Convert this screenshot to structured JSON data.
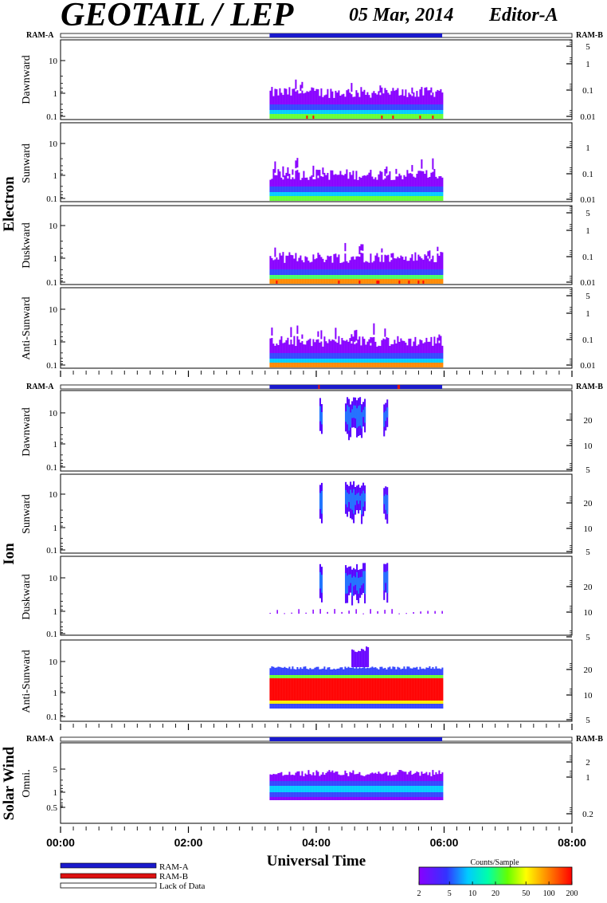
{
  "header": {
    "title": "GEOTAIL / LEP",
    "date": "05 Mar, 2014",
    "editor": "Editor-A"
  },
  "ram_labels": {
    "a": "RAM-A",
    "b": "RAM-B"
  },
  "groups": [
    {
      "label": "Electron",
      "panels": [
        "Dawnward",
        "Sunward",
        "Duskward",
        "Anti-Sunward"
      ]
    },
    {
      "label": "Ion",
      "panels": [
        "Dawnward",
        "Sunward",
        "Duskward",
        "Anti-Sunward"
      ]
    },
    {
      "label": "Solar Wind",
      "panels": [
        "Omni."
      ]
    }
  ],
  "chart_data": {
    "type": "heatmap",
    "xlabel": "Universal Time",
    "x_ticks": [
      "00:00",
      "02:00",
      "04:00",
      "06:00",
      "08:00"
    ],
    "x_range_hours": [
      0,
      8
    ],
    "data_coverage_hours": [
      3.27,
      5.97
    ],
    "panels": [
      {
        "group": "Electron",
        "name": "Dawnward",
        "left_ticks": [
          "10",
          "1",
          "0.1"
        ],
        "right_ticks": [
          "5",
          "1",
          "0.1",
          "0.01"
        ]
      },
      {
        "group": "Electron",
        "name": "Sunward",
        "left_ticks": [
          "10",
          "1",
          "0.1"
        ],
        "right_ticks": [
          "1",
          "0.1",
          "0.01"
        ]
      },
      {
        "group": "Electron",
        "name": "Duskward",
        "left_ticks": [
          "10",
          "1",
          "0.1"
        ],
        "right_ticks": [
          "5",
          "1",
          "0.1",
          "0.01"
        ]
      },
      {
        "group": "Electron",
        "name": "Anti-Sunward",
        "left_ticks": [
          "10",
          "1",
          "0.1"
        ],
        "right_ticks": [
          "5",
          "1",
          "0.1",
          "0.01"
        ]
      },
      {
        "group": "Ion",
        "name": "Dawnward",
        "left_ticks": [
          "10",
          "1",
          "0.1"
        ],
        "right_ticks": [
          "20",
          "10",
          "5"
        ]
      },
      {
        "group": "Ion",
        "name": "Sunward",
        "left_ticks": [
          "10",
          "1",
          "0.1"
        ],
        "right_ticks": [
          "20",
          "10",
          "5"
        ]
      },
      {
        "group": "Ion",
        "name": "Duskward",
        "left_ticks": [
          "10",
          "1",
          "0.1"
        ],
        "right_ticks": [
          "20",
          "10",
          "5"
        ]
      },
      {
        "group": "Ion",
        "name": "Anti-Sunward",
        "left_ticks": [
          "10",
          "1",
          "0.1"
        ],
        "right_ticks": [
          "20",
          "10",
          "5"
        ]
      },
      {
        "group": "Solar Wind",
        "name": "Omni.",
        "left_ticks": [
          "5",
          "1",
          "0.5"
        ],
        "right_ticks": [
          "2",
          "1",
          "0.2"
        ]
      }
    ],
    "ram_mode_bars": [
      {
        "group": "Electron",
        "segments": [
          {
            "mode": "RAM-A",
            "start_h": 3.27,
            "end_h": 5.97
          }
        ]
      },
      {
        "group": "Ion",
        "segments": [
          {
            "mode": "RAM-A",
            "start_h": 3.27,
            "end_h": 5.97
          },
          {
            "mode": "RAM-B",
            "start_h": 4.03,
            "end_h": 4.05
          },
          {
            "mode": "RAM-B",
            "start_h": 5.27,
            "end_h": 5.31
          }
        ]
      },
      {
        "group": "Solar Wind",
        "segments": [
          {
            "mode": "RAM-A",
            "start_h": 3.27,
            "end_h": 5.97
          }
        ]
      }
    ],
    "legend": {
      "items": [
        {
          "label": "RAM-A",
          "color": "#1a1acc"
        },
        {
          "label": "RAM-B",
          "color": "#dd1111"
        },
        {
          "label": "Lack of Data",
          "color": "#ffffff"
        }
      ]
    },
    "colorbar": {
      "title": "Counts/Sample",
      "ticks": [
        "2",
        "5",
        "10",
        "20",
        "50",
        "100",
        "200"
      ],
      "range": [
        2,
        200
      ],
      "scale": "log"
    }
  }
}
